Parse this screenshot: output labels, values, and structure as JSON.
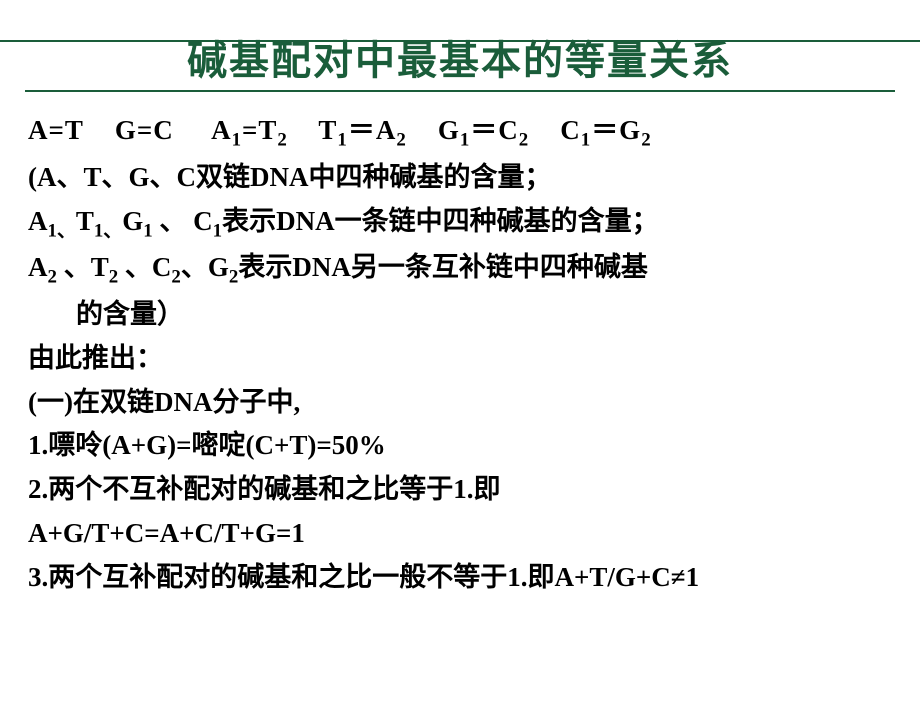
{
  "title": {
    "text": "碱基配对中最基本的等量关系",
    "color": "#1a5d3a",
    "fontsize": 40
  },
  "line_color": "#1a5d3a",
  "content_fontsize": 27,
  "equations": {
    "eq1": "A=T",
    "eq2": "G=C",
    "eq3a": "A",
    "eq3b": "1",
    "eq3c": "=T",
    "eq3d": "2",
    "eq4a": "T",
    "eq4b": "1",
    "eq4c": "＝A",
    "eq4d": "2",
    "eq5a": "G",
    "eq5b": "1",
    "eq5c": "＝C",
    "eq5d": "2",
    "eq6a": "C",
    "eq6b": "1",
    "eq6c": "＝G",
    "eq6d": "2"
  },
  "note1_a": "(A、T、G、C双链DNA中四种碱基的含量；",
  "note2_pre": "A",
  "note2_s1": "1、",
  "note2_t": "T",
  "note2_s2": "1、",
  "note2_g": "G",
  "note2_s3": "1",
  "note2_sp": " 、 ",
  "note2_c": "C",
  "note2_s4": "1",
  "note2_post": "表示DNA一条链中四种碱基的含量；",
  "note3_a": "A",
  "note3_s1": "2",
  "note3_sp1": " 、",
  "note3_t": "T",
  "note3_s2": "2",
  "note3_sp2": " 、",
  "note3_c": "C",
  "note3_s3": "2",
  "note3_sp3": "、",
  "note3_g": "G",
  "note3_s4": "2",
  "note3_post": "表示DNA另一条互补链中四种碱基",
  "note3_cont": "的含量）",
  "derive": "由此推出：",
  "section1_head": "(一)在双链DNA分子中,",
  "item1": "1.嘌呤(A+G)=嘧啶(C+T)=50%",
  "item2": "2.两个不互补配对的碱基和之比等于1.即",
  "item2_eq": "A+G/T+C=A+C/T+G=1",
  "item3": "3.两个互补配对的碱基和之比一般不等于1.即A+T/G+C≠1"
}
